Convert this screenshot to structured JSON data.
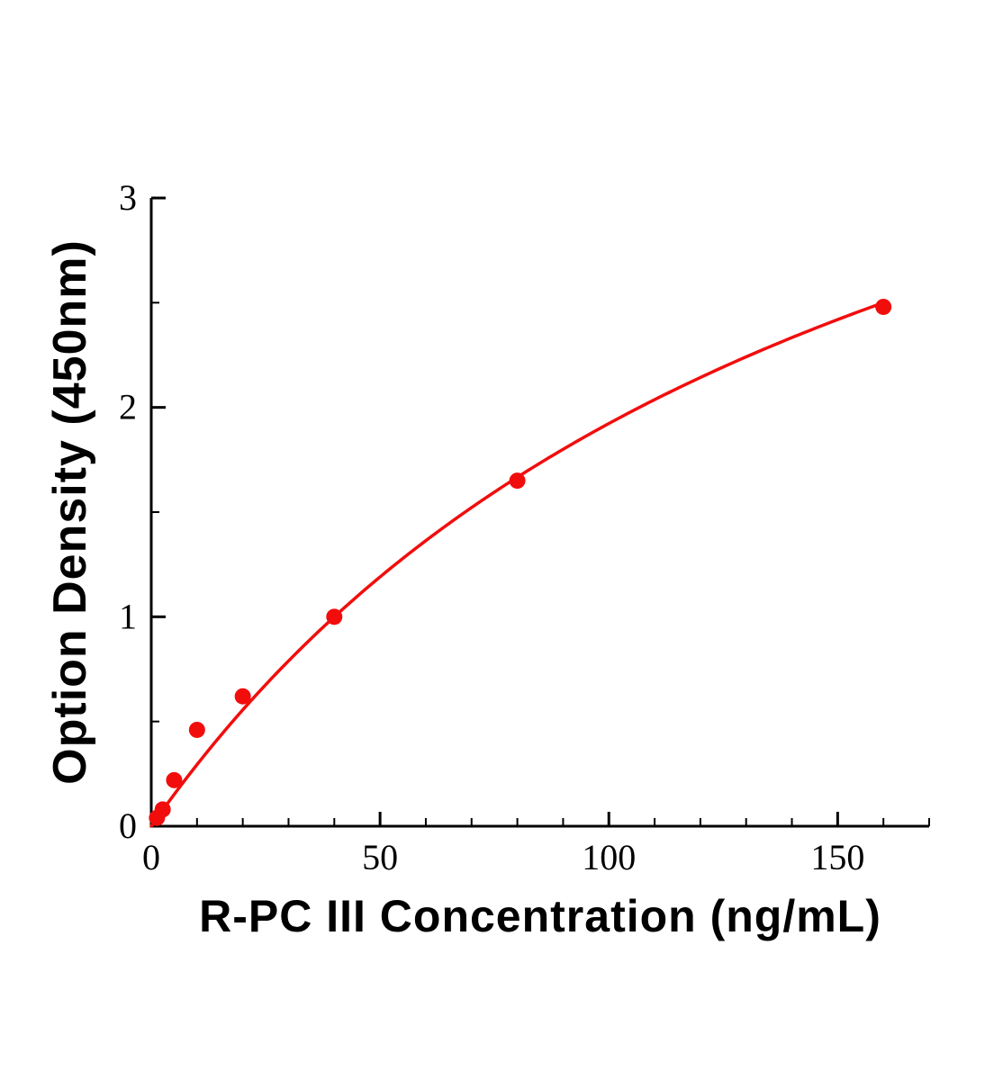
{
  "figure": {
    "background": "#ffffff",
    "axis_color": "#000000",
    "tick_label_color": "#000000"
  },
  "chart_data": {
    "type": "scatter",
    "title": "",
    "xlabel": "R-PC III Concentration (ng/mL)",
    "ylabel": "Option Density (450nm)",
    "xlim": [
      0,
      170
    ],
    "ylim": [
      0,
      3
    ],
    "x_major_ticks": [
      0,
      50,
      100,
      150
    ],
    "x_minor_step": 10,
    "y_major_ticks": [
      0,
      1,
      2,
      3
    ],
    "y_minor_step": 0.5,
    "grid": false,
    "legend": false,
    "series": [
      {
        "name": "standard-curve-points",
        "type": "scatter",
        "color": "#f20d0d",
        "marker_radius": 9,
        "x": [
          1.25,
          2.5,
          5,
          10,
          20,
          40,
          80,
          160
        ],
        "y": [
          0.04,
          0.08,
          0.22,
          0.46,
          0.62,
          1.0,
          1.65,
          2.48
        ]
      }
    ],
    "fit_curve": {
      "name": "fitted-curve",
      "color": "#f20d0d",
      "stroke_width": 3.5,
      "model": "y = a*x/(x + c)",
      "a": 5.0,
      "c": 160,
      "x_range": [
        0,
        160
      ]
    }
  }
}
